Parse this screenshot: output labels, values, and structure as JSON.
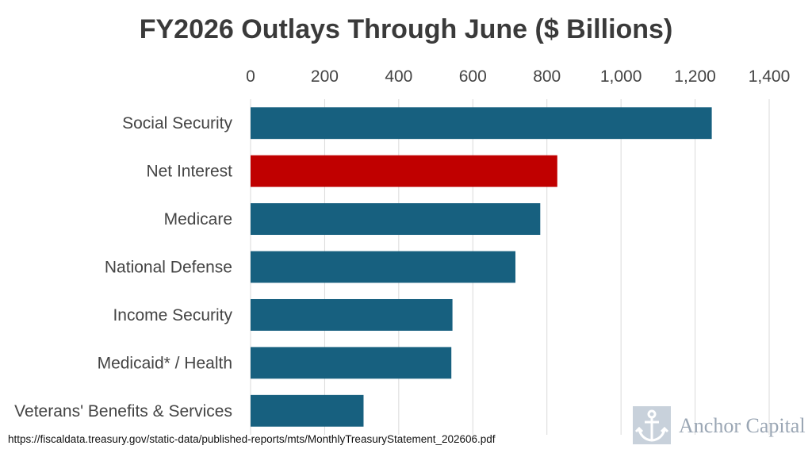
{
  "chart_data": {
    "type": "bar",
    "orientation": "horizontal",
    "title": "FY2026 Outlays Through June ($ Billions)",
    "categories": [
      "Social Security",
      "Net Interest",
      "Medicare",
      "National Defense",
      "Income Security",
      "Medicaid* / Health",
      "Veterans' Benefits & Services"
    ],
    "values": [
      1245,
      828,
      782,
      715,
      545,
      542,
      305
    ],
    "bar_colors": [
      "#17607f",
      "#c00000",
      "#17607f",
      "#17607f",
      "#17607f",
      "#17607f",
      "#17607f"
    ],
    "xlim": [
      0,
      1400
    ],
    "xticks": [
      0,
      200,
      400,
      600,
      800,
      1000,
      1200,
      1400
    ],
    "xtick_labels": [
      "0",
      "200",
      "400",
      "600",
      "800",
      "1,000",
      "1,200",
      "1,400"
    ],
    "axis_position": "top",
    "grid": "vertical",
    "grid_color": "#d9d9d9"
  },
  "source": "https://fiscaldata.treasury.gov/static-data/published-reports/mts/MonthlyTreasuryStatement_202606.pdf",
  "logo": {
    "text": "Anchor Capital",
    "icon": "anchor-icon",
    "color": "#9aa6b4"
  }
}
